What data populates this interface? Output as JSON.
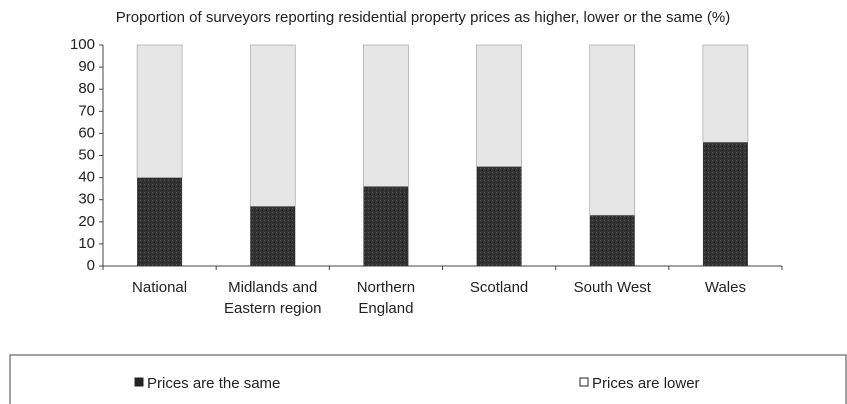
{
  "chart_data": {
    "type": "stacked_bar",
    "title": "Proportion of surveyors reporting residential property prices as higher, lower or the same (%)",
    "categories": [
      "National",
      "Midlands and Eastern region",
      "Northern England",
      "Scotland",
      "South West",
      "Wales"
    ],
    "series": [
      {
        "name": "Prices are the same",
        "color": "#333333",
        "values": [
          40,
          27,
          36,
          45,
          23,
          56
        ]
      },
      {
        "name": "Prices are lower",
        "color": "#e6e6e6",
        "values": [
          60,
          73,
          64,
          55,
          77,
          44
        ]
      }
    ],
    "ylim": [
      0,
      100
    ],
    "yticks": [
      0,
      10,
      20,
      30,
      40,
      50,
      60,
      70,
      80,
      90,
      100
    ],
    "grid": false
  }
}
